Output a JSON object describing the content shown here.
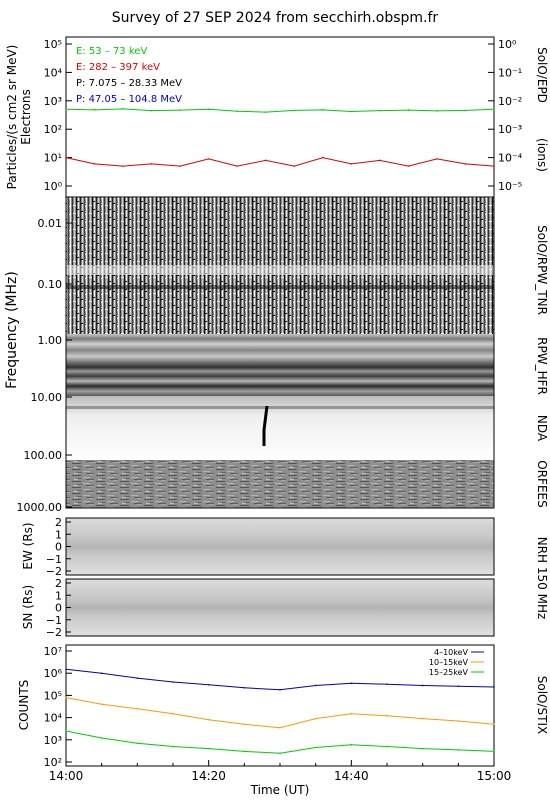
{
  "title": "Survey of 27 SEP 2024 from secchirh.obspm.fr",
  "time_axis": {
    "label": "Time (UT)",
    "ticks": [
      "14:00",
      "14:20",
      "14:40",
      "15:00"
    ]
  },
  "colors": {
    "green": "#00cc00",
    "red": "#dd0000",
    "black": "#000000",
    "blue": "#0000cc",
    "orange": "#ff9900",
    "navy": "#0000aa"
  },
  "panels": {
    "epd": {
      "ylabel_left_1": "Particles/(s cm2 sr MeV)",
      "ylabel_left_2": "Electrons",
      "ylabel_right_1": "SolO/EPD",
      "ylabel_right_2": "(ions)",
      "left_ticks": [
        "10⁰",
        "10¹",
        "10²",
        "10³",
        "10⁴",
        "10⁵"
      ],
      "right_ticks": [
        "10⁻⁵",
        "10⁻⁴",
        "10⁻³",
        "10⁻²",
        "10⁻¹",
        "10⁰"
      ],
      "legend": [
        {
          "text": "E: 53 – 73 keV",
          "color": "#00cc00"
        },
        {
          "text": "E: 282 – 397 keV",
          "color": "#dd0000"
        },
        {
          "text": "P: 7.075 – 28.33 MeV",
          "color": "#000000"
        },
        {
          "text": "P: 47.05 – 104.8 MeV",
          "color": "#0000cc"
        }
      ]
    },
    "spectrogram": {
      "ylabel": "Frequency (MHz)",
      "ticks": [
        "0.01",
        "0.10",
        "1.00",
        "10.00",
        "100.00",
        "1000.00"
      ],
      "instruments": [
        "SolO/RPW_TNR",
        "RPW_HFR",
        "NDA",
        "ORFEES"
      ]
    },
    "nrh": {
      "title": "NRH 150 MHz",
      "ew_label": "EW (Rs)",
      "sn_label": "SN (Rs)",
      "ticks": [
        "2",
        "1",
        "0",
        "−1",
        "−2"
      ]
    },
    "stix": {
      "ylabel": "COUNTS",
      "right_label": "SolO/STIX",
      "ticks": [
        "10²",
        "10³",
        "10⁴",
        "10⁵",
        "10⁶",
        "10⁷"
      ],
      "legend": [
        {
          "text": "4–10keV",
          "color": "#0000aa"
        },
        {
          "text": "10–15keV",
          "color": "#ff9900"
        },
        {
          "text": "15–25keV",
          "color": "#00cc00"
        }
      ]
    }
  },
  "chart_data": [
    {
      "type": "line",
      "panel": "SolO/EPD",
      "x": [
        "14:00",
        "14:04",
        "14:08",
        "14:12",
        "14:16",
        "14:20",
        "14:24",
        "14:28",
        "14:32",
        "14:36",
        "14:40",
        "14:44",
        "14:48",
        "14:52",
        "14:56",
        "15:00"
      ],
      "yscale": "log",
      "ylim": [
        1,
        100000
      ],
      "series": [
        {
          "name": "E: 53 – 73 keV",
          "values": [
            500,
            480,
            520,
            450,
            470,
            500,
            430,
            400,
            460,
            480,
            420,
            450,
            470,
            440,
            460,
            500
          ]
        },
        {
          "name": "E: 282 – 397 keV",
          "values": [
            10,
            6,
            5,
            6,
            5,
            9,
            5,
            8,
            5,
            10,
            6,
            8,
            5,
            9,
            6,
            5
          ]
        }
      ]
    },
    {
      "type": "line",
      "panel": "SolO/STIX",
      "x": [
        "14:00",
        "14:05",
        "14:10",
        "14:15",
        "14:20",
        "14:25",
        "14:30",
        "14:35",
        "14:40",
        "14:45",
        "14:50",
        "14:55",
        "15:00"
      ],
      "yscale": "log",
      "ylim": [
        100,
        10000000
      ],
      "series": [
        {
          "name": "4–10keV",
          "values": [
            1500000,
            1000000,
            600000,
            400000,
            300000,
            220000,
            180000,
            280000,
            350000,
            320000,
            280000,
            260000,
            240000
          ]
        },
        {
          "name": "10–15keV",
          "values": [
            80000,
            40000,
            25000,
            15000,
            8000,
            5000,
            3500,
            9000,
            15000,
            12000,
            9000,
            7000,
            5000
          ]
        },
        {
          "name": "15–25keV",
          "values": [
            2500,
            1200,
            700,
            500,
            400,
            300,
            250,
            450,
            600,
            500,
            400,
            350,
            300
          ]
        }
      ]
    }
  ]
}
